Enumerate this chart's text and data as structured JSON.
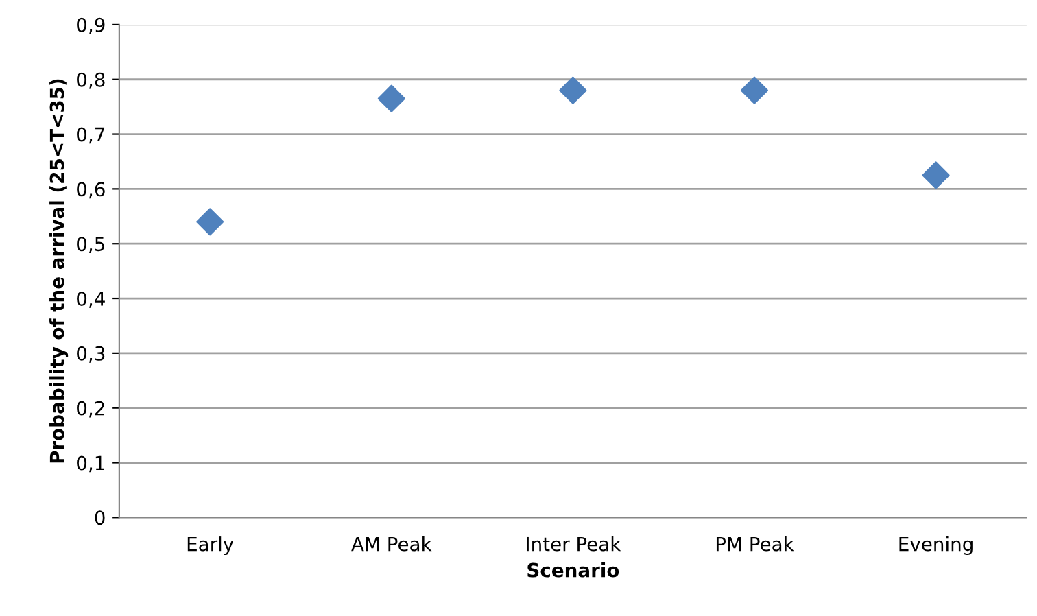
{
  "chart_data": {
    "type": "scatter",
    "xlabel": "Scenario",
    "ylabel": "Probability of the arrival (25<T<35)",
    "categories": [
      "Early",
      "AM Peak",
      "Inter Peak",
      "PM Peak",
      "Evening"
    ],
    "series": [
      {
        "color": "#4f81bd",
        "values": [
          0.54,
          0.765,
          0.78,
          0.78,
          0.625
        ]
      }
    ],
    "ylim": [
      0,
      0.9
    ],
    "yticks": [
      {
        "value": 0,
        "label": "0"
      },
      {
        "value": 0.1,
        "label": "0,1"
      },
      {
        "value": 0.2,
        "label": "0,2"
      },
      {
        "value": 0.3,
        "label": "0,3"
      },
      {
        "value": 0.4,
        "label": "0,4"
      },
      {
        "value": 0.5,
        "label": "0,5"
      },
      {
        "value": 0.6,
        "label": "0,6"
      },
      {
        "value": 0.7,
        "label": "0,7"
      },
      {
        "value": 0.8,
        "label": "0,8"
      },
      {
        "value": 0.9,
        "label": "0,9"
      }
    ],
    "grid": "y",
    "marker": "diamond",
    "legend": false
  }
}
